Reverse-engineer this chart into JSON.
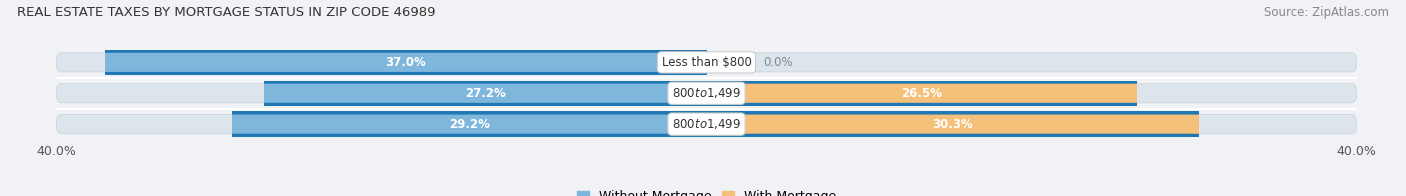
{
  "title": "REAL ESTATE TAXES BY MORTGAGE STATUS IN ZIP CODE 46989",
  "source": "Source: ZipAtlas.com",
  "rows": [
    {
      "label": "Less than $800",
      "without_mortgage": 37.0,
      "with_mortgage": 0.0
    },
    {
      "label": "$800 to $1,499",
      "without_mortgage": 27.2,
      "with_mortgage": 26.5
    },
    {
      "label": "$800 to $1,499",
      "without_mortgage": 29.2,
      "with_mortgage": 30.3
    }
  ],
  "xlim": 40.0,
  "color_without": "#7EB6DC",
  "color_without_light": "#C2DCF0",
  "color_with": "#F5C07A",
  "color_with_light": "#FAE0B5",
  "bar_bg_color": "#E0E8F0",
  "bar_bg_outer": "#D0D8E0",
  "label_fontsize": 8.5,
  "title_fontsize": 9.5,
  "source_fontsize": 8.5,
  "value_fontsize": 8.5,
  "legend_fontsize": 9,
  "axis_label_fontsize": 9,
  "background_color": "#f0f2f5",
  "white": "#ffffff"
}
